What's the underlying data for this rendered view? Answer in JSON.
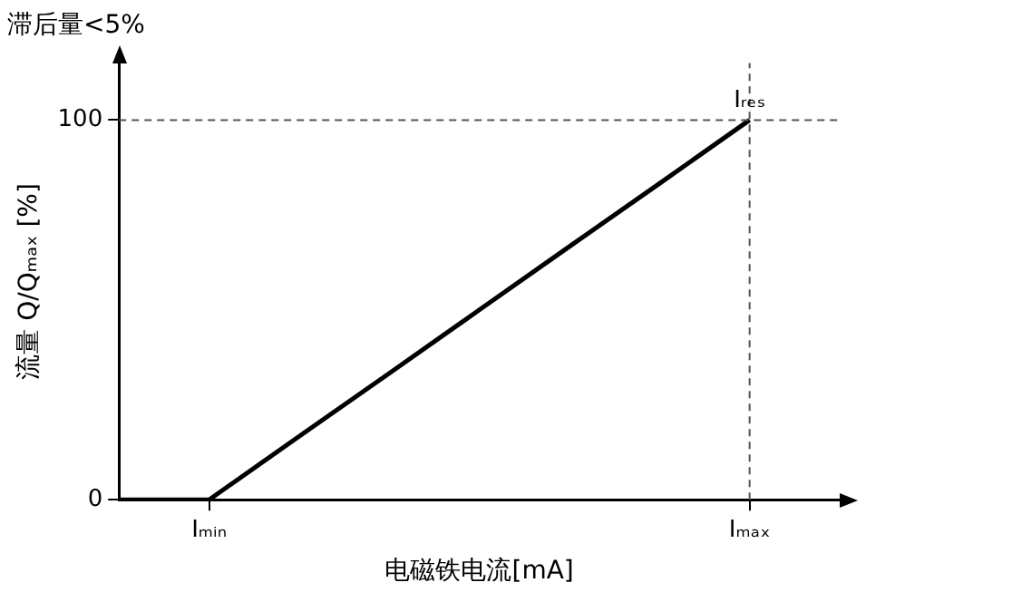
{
  "chart_data": {
    "type": "line",
    "title": "滞后量<5%",
    "xlabel": "电磁铁电流[mA]",
    "ylabel": "流量 Q/Qₘₐₓ [%]",
    "categories": [
      null,
      "Iₘᵢₙ",
      null,
      null,
      null,
      null,
      null,
      "Iₘₐₓ",
      null
    ],
    "series": [
      {
        "color": "#000000",
        "values": [
          0,
          0,
          16.7,
          33.3,
          50,
          66.7,
          83.3,
          100,
          null
        ]
      }
    ],
    "ylim": [
      0,
      115
    ],
    "yticks": [
      0,
      100
    ],
    "ref_lines": [
      {
        "axis": "x",
        "value": "Iₘₐₓ",
        "color": "#555555",
        "line_style": "dashed"
      },
      {
        "axis": "y",
        "value": 100,
        "color": "#555555",
        "line_style": "dashed"
      }
    ],
    "annotations": [
      {
        "text": "Iᵣₑₛ",
        "x": "Iₘₐₓ",
        "y": 100
      }
    ],
    "grid": false,
    "legend": false,
    "marker": "none",
    "line_style": "solid"
  }
}
